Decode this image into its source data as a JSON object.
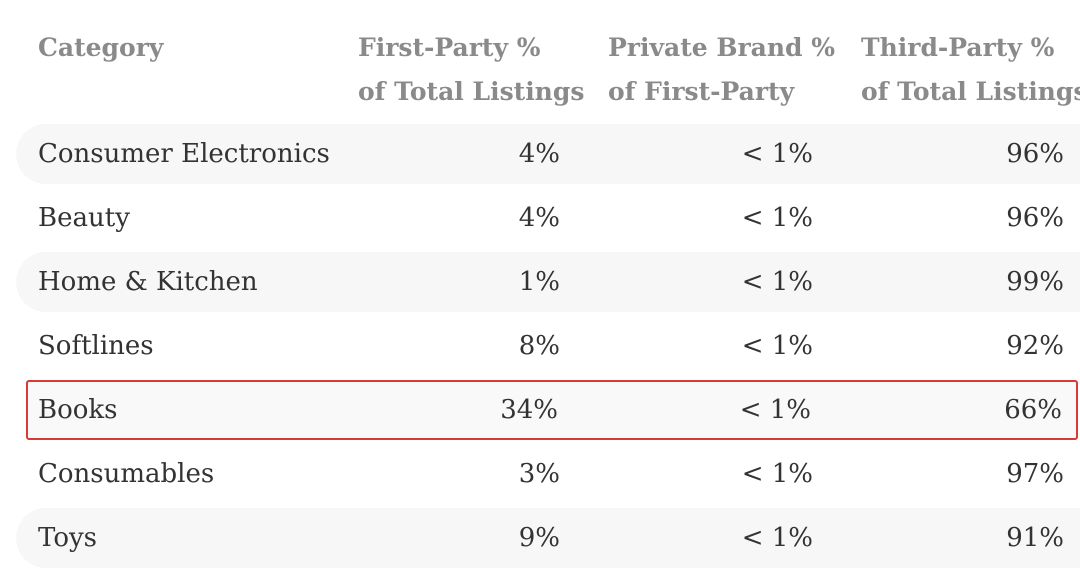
{
  "table": {
    "headers": {
      "category": [
        "Category"
      ],
      "first_party": [
        "First-Party %",
        "of Total Listings"
      ],
      "private_brand": [
        "Private Brand %",
        "of First-Party"
      ],
      "third_party": [
        "Third-Party %",
        "of Total Listings"
      ]
    },
    "rows": [
      {
        "category": "Consumer Electronics",
        "first_party": "4%",
        "private_brand": "< 1%",
        "third_party": "96%"
      },
      {
        "category": "Beauty",
        "first_party": "4%",
        "private_brand": "< 1%",
        "third_party": "96%"
      },
      {
        "category": "Home & Kitchen",
        "first_party": "1%",
        "private_brand": "< 1%",
        "third_party": "99%"
      },
      {
        "category": "Softlines",
        "first_party": "8%",
        "private_brand": "< 1%",
        "third_party": "92%"
      },
      {
        "category": "Books",
        "first_party": "34%",
        "private_brand": "< 1%",
        "third_party": "66%"
      },
      {
        "category": "Consumables",
        "first_party": "3%",
        "private_brand": "< 1%",
        "third_party": "97%"
      },
      {
        "category": "Toys",
        "first_party": "9%",
        "private_brand": "< 1%",
        "third_party": "91%"
      }
    ],
    "highlighted_row": "Books",
    "highlight_color": "#d93a36",
    "header_color": "#8a8a8a",
    "text_color": "#333333",
    "stripe_color": "#f7f7f7"
  }
}
